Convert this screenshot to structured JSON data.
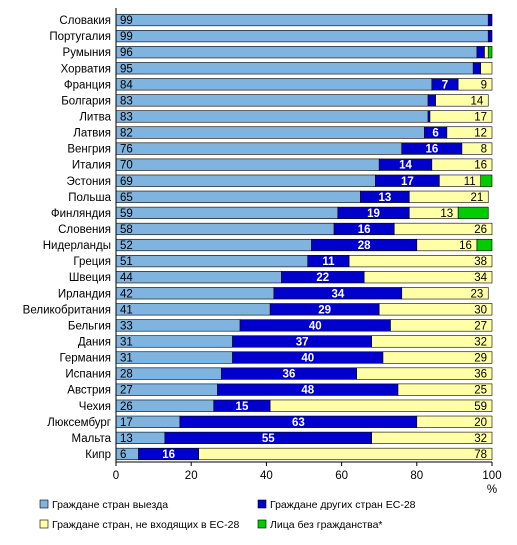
{
  "chart_data": {
    "type": "bar",
    "orientation": "horizontal",
    "stacked": true,
    "categories": [
      "Словакия",
      "Португалия",
      "Румыния",
      "Хорватия",
      "Франция",
      "Болгария",
      "Литва",
      "Латвия",
      "Венгрия",
      "Италия",
      "Эстония",
      "Польша",
      "Финляндия",
      "Словения",
      "Нидерланды",
      "Греция",
      "Швеция",
      "Ирландия",
      "Великобритания",
      "Бельгия",
      "Дания",
      "Германия",
      "Испания",
      "Австрия",
      "Чехия",
      "Люксембург",
      "Мальта",
      "Кипр"
    ],
    "series": [
      {
        "name": "Граждане стран выезда",
        "color": "#7fb3e0",
        "values": [
          99,
          99,
          96,
          95,
          84,
          83,
          83,
          82,
          76,
          70,
          69,
          65,
          59,
          58,
          52,
          51,
          44,
          42,
          41,
          33,
          31,
          31,
          28,
          27,
          26,
          17,
          13,
          6
        ]
      },
      {
        "name": "Граждане других стран ЕС-28",
        "color": "#0000cc",
        "values": [
          1,
          1,
          2,
          2,
          7,
          2,
          0.5,
          6,
          16,
          14,
          17,
          13,
          19,
          16,
          28,
          11,
          22,
          34,
          29,
          40,
          37,
          40,
          36,
          48,
          15,
          63,
          55,
          16
        ]
      },
      {
        "name": "Граждане стран, не входящих в ЕС-28",
        "color": "#ffffa8",
        "values": [
          0,
          0,
          1,
          3,
          9,
          14,
          17,
          12,
          8,
          16,
          11,
          21,
          13,
          26,
          16,
          38,
          34,
          23,
          30,
          27,
          32,
          29,
          36,
          25,
          59,
          20,
          32,
          78
        ]
      },
      {
        "name": "Лица без гражданства*",
        "color": "#00cc00",
        "values": [
          0,
          0,
          1,
          0,
          0,
          0,
          0,
          0,
          0,
          0,
          3,
          0,
          8,
          0,
          4,
          0,
          0.5,
          0,
          0,
          0,
          0,
          0,
          0,
          0,
          0,
          0,
          0,
          0
        ]
      }
    ],
    "bar_labels": [
      [
        "99",
        "",
        "",
        ""
      ],
      [
        "99",
        "",
        "",
        ""
      ],
      [
        "96",
        "",
        "",
        ""
      ],
      [
        "95",
        "",
        "",
        ""
      ],
      [
        "84",
        "7",
        "9",
        ""
      ],
      [
        "83",
        "",
        "14",
        ""
      ],
      [
        "83",
        "",
        "17",
        ""
      ],
      [
        "82",
        "6",
        "12",
        ""
      ],
      [
        "76",
        "16",
        "8",
        ""
      ],
      [
        "70",
        "14",
        "16",
        ""
      ],
      [
        "69",
        "17",
        "11",
        ""
      ],
      [
        "65",
        "13",
        "21",
        ""
      ],
      [
        "59",
        "19",
        "13",
        ""
      ],
      [
        "58",
        "16",
        "26",
        ""
      ],
      [
        "52",
        "28",
        "16",
        ""
      ],
      [
        "51",
        "11",
        "38",
        ""
      ],
      [
        "44",
        "22",
        "34",
        ""
      ],
      [
        "42",
        "34",
        "23",
        ""
      ],
      [
        "41",
        "29",
        "30",
        ""
      ],
      [
        "33",
        "40",
        "27",
        ""
      ],
      [
        "31",
        "37",
        "32",
        ""
      ],
      [
        "31",
        "40",
        "29",
        ""
      ],
      [
        "28",
        "36",
        "36",
        ""
      ],
      [
        "27",
        "48",
        "25",
        ""
      ],
      [
        "26",
        "15",
        "59",
        ""
      ],
      [
        "17",
        "63",
        "20",
        ""
      ],
      [
        "13",
        "55",
        "32",
        ""
      ],
      [
        "6",
        "16",
        "78",
        ""
      ]
    ],
    "x_ticks": [
      "0",
      "20",
      "40",
      "60",
      "80",
      "100"
    ],
    "x_unit": "%",
    "xlim": [
      0,
      100
    ],
    "grid": false,
    "legend_position": "bottom"
  }
}
